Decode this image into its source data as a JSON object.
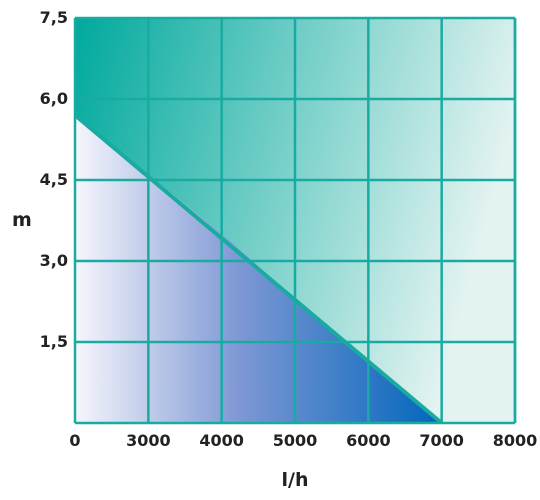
{
  "chart_data": {
    "type": "area",
    "title": "",
    "xlabel": "l/h",
    "ylabel": "m",
    "x_tick_labels": [
      "0",
      "3000",
      "4000",
      "5000",
      "6000",
      "7000",
      "8000"
    ],
    "y_tick_labels": [
      "7,5",
      "6,0",
      "4,5",
      "3,0",
      "1,5"
    ],
    "x_category_positions": [
      0,
      1,
      2,
      3,
      4,
      5,
      6
    ],
    "y_ticks": [
      1.5,
      3.0,
      4.5,
      6.0,
      7.5
    ],
    "xlim": [
      0,
      6
    ],
    "ylim": [
      0,
      7.5
    ],
    "grid": true,
    "series": [
      {
        "name": "",
        "x": [
          "0",
          "3000",
          "4000",
          "5000",
          "6000",
          "7000"
        ],
        "x_positions": [
          0,
          1,
          2,
          3,
          4,
          5
        ],
        "y": [
          5.7,
          4.6,
          3.5,
          2.3,
          1.1,
          0
        ]
      }
    ],
    "colors": {
      "grid": "#19aba1",
      "upper_dark": "#00a99d",
      "upper_light": "#e3f3f1",
      "lower_light": "#f6f6fc",
      "lower_dark": "#0066bb",
      "text": "#222222"
    }
  }
}
